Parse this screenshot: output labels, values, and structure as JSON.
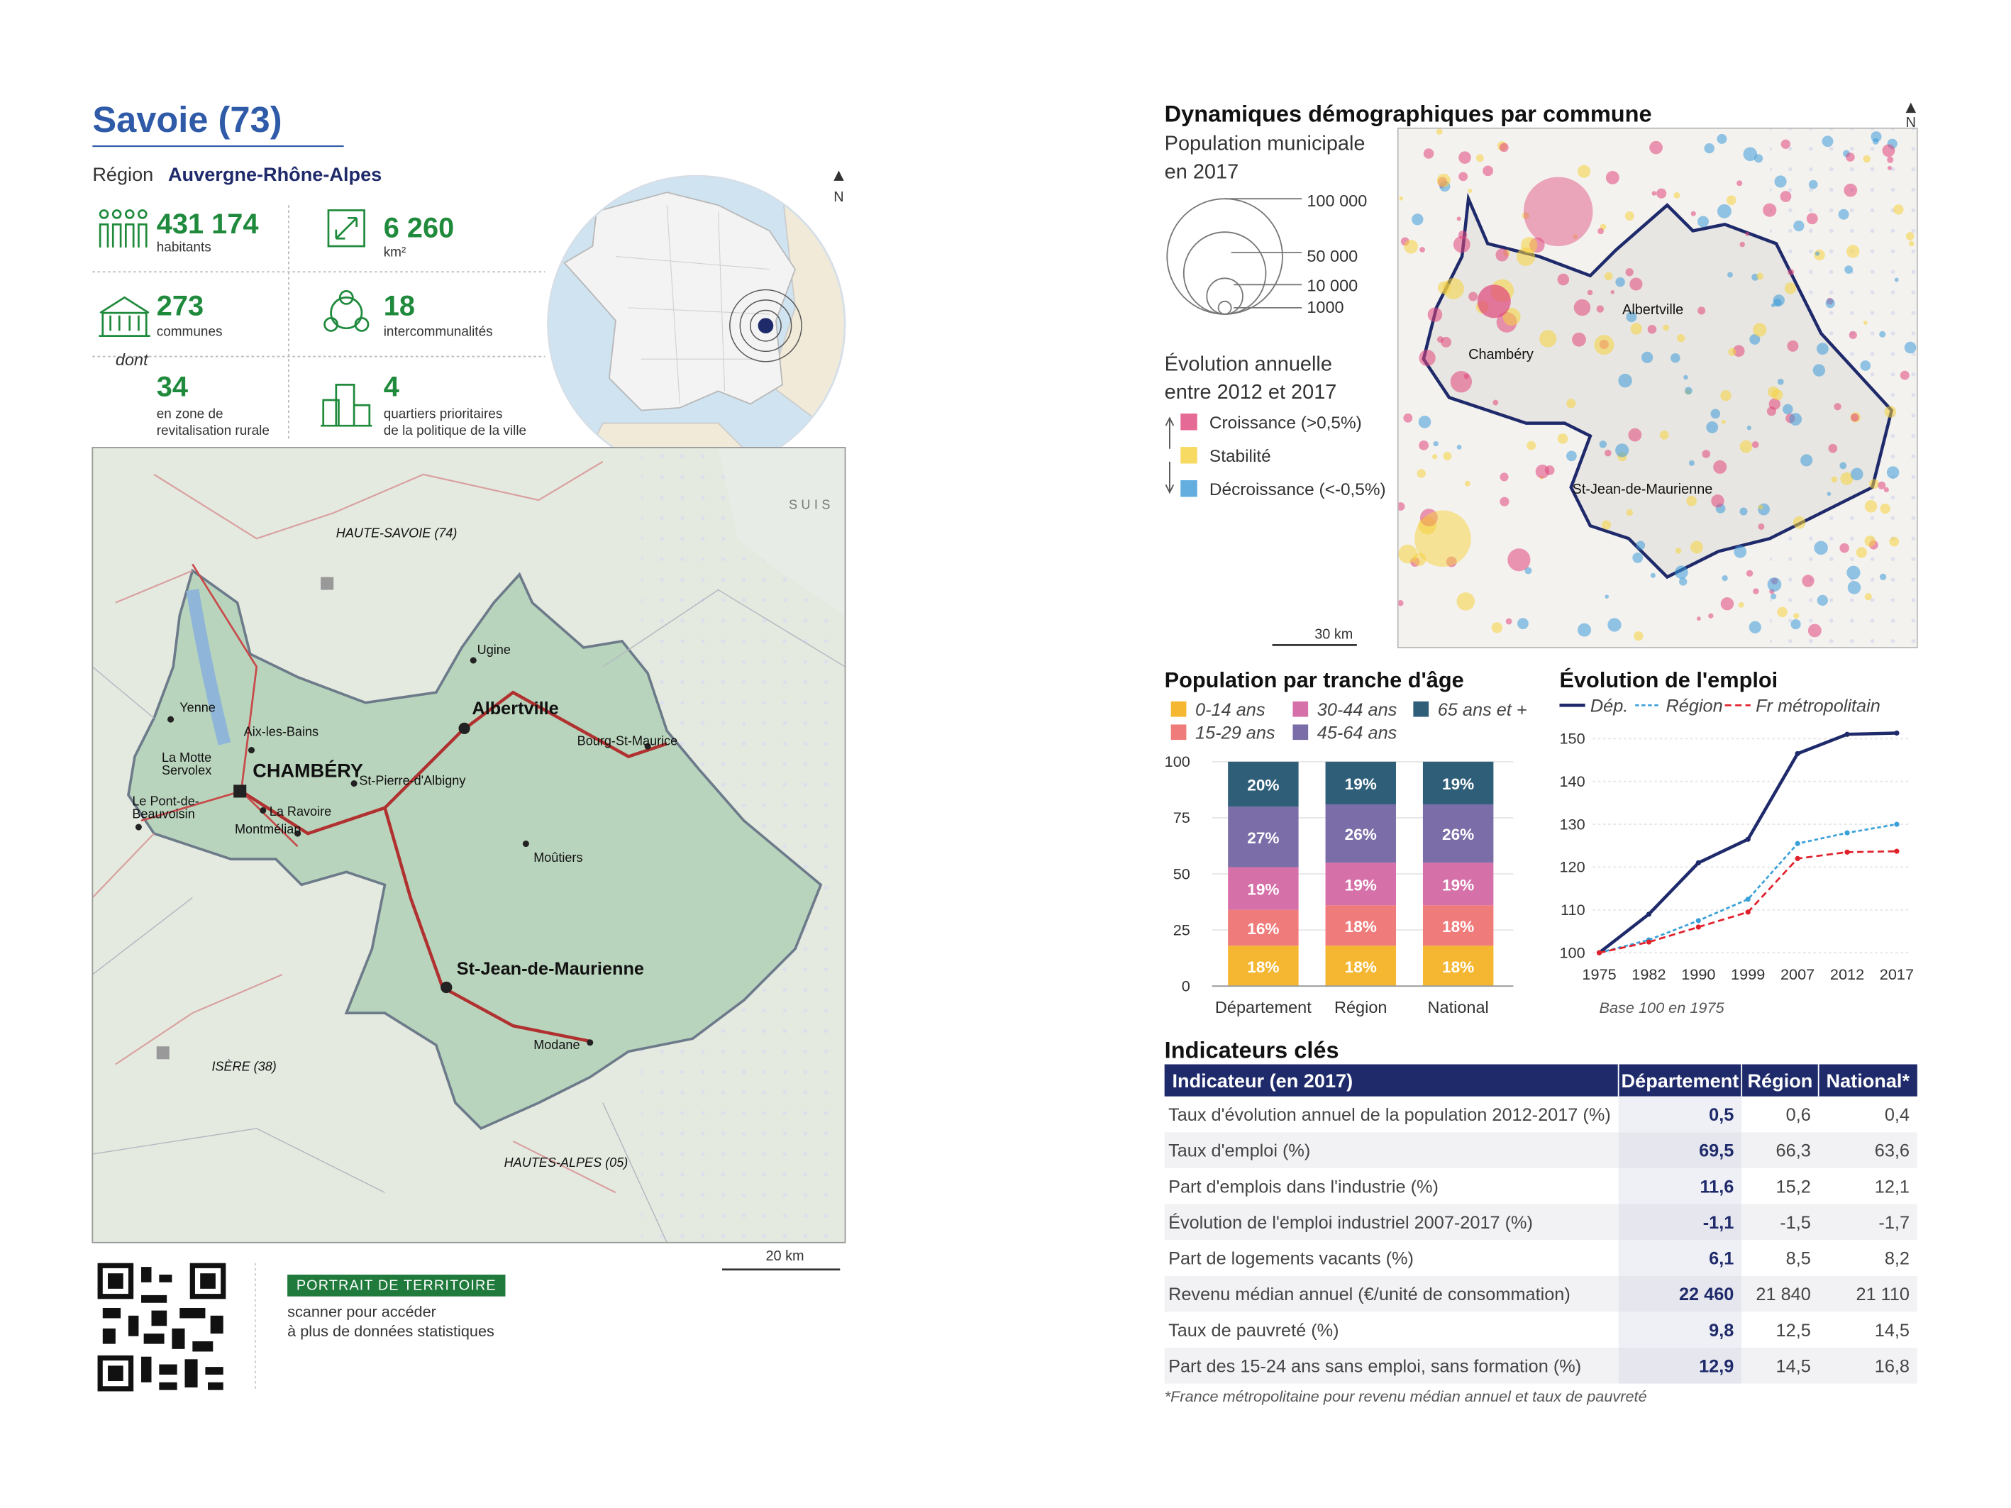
{
  "header": {
    "title": "Savoie (73)",
    "region_label": "Région",
    "region": "Auvergne-Rhône-Alpes"
  },
  "stats": [
    {
      "value": "431 174",
      "label": [
        "habitants"
      ]
    },
    {
      "value": "6 260",
      "label": [
        "km²"
      ]
    },
    {
      "value": "273",
      "label": [
        "communes"
      ]
    },
    {
      "value": "18",
      "label": [
        "intercommunalités"
      ]
    },
    {
      "value": "34",
      "label": [
        "en zone de",
        "revitalisation rurale"
      ]
    },
    {
      "value": "4",
      "label": [
        "quartiers prioritaires",
        "de la politique de la ville"
      ]
    }
  ],
  "stats_dont": "dont",
  "locator": {
    "north": "N"
  },
  "map": {
    "labels": [
      "HAUTE-SAVOIE (74)",
      "SUIS",
      "Ugine",
      "Albertville",
      "Bourg-St-Maurice",
      "Yenne",
      "Aix-les-Bains",
      "La Motte",
      "Servolex",
      "CHAMBÉRY",
      "St-Pierre-d'Albigny",
      "Le Pont-de-",
      "Beauvoisin",
      "La Ravoire",
      "Montmélian",
      "Moûtiers",
      "St-Jean-de-Maurienne",
      "Modane",
      "ISÈRE (38)",
      "HAUTES-ALPES (05)"
    ],
    "scale": "20 km"
  },
  "demography_map": {
    "title": "Dynamiques démographiques par commune",
    "north": "N",
    "size_title": [
      "Population municipale",
      "en 2017"
    ],
    "size_legend": [
      "100 000",
      "50 000",
      "10 000",
      "1000"
    ],
    "change_title": [
      "Évolution annuelle",
      "entre 2012 et 2017"
    ],
    "change_legend": [
      {
        "label": "Croissance (>0,5%)",
        "color": "#e0467c"
      },
      {
        "label": "Stabilité",
        "color": "#f5d23c"
      },
      {
        "label": "Décroissance (<-0,5%)",
        "color": "#3d9ad8"
      }
    ],
    "labels": [
      "Albertville",
      "Chambéry",
      "St-Jean-de-Maurienne"
    ],
    "scale": "30 km"
  },
  "chart_data": [
    {
      "type": "stacked_bar",
      "title": "Population par tranche d'âge",
      "categories": [
        "Département",
        "Région",
        "National"
      ],
      "series": [
        {
          "name": "0-14 ans",
          "color": "#f5b731",
          "values": [
            18,
            18,
            18
          ],
          "value_labels": [
            "18%",
            "18%",
            "18%"
          ]
        },
        {
          "name": "15-29 ans",
          "color": "#ef7b7b",
          "values": [
            16,
            18,
            18
          ],
          "value_labels": [
            "16%",
            "18%",
            "18%"
          ]
        },
        {
          "name": "30-44 ans",
          "color": "#d670a8",
          "values": [
            19,
            19,
            19
          ],
          "value_labels": [
            "19%",
            "19%",
            "19%"
          ]
        },
        {
          "name": "45-64 ans",
          "color": "#7b6ea8",
          "values": [
            27,
            26,
            26
          ],
          "value_labels": [
            "27%",
            "26%",
            "26%"
          ]
        },
        {
          "name": "65 ans et +",
          "color": "#2f5e78",
          "values": [
            20,
            19,
            19
          ],
          "value_labels": [
            "20%",
            "19%",
            "19%"
          ]
        }
      ],
      "ylim": [
        0,
        100
      ],
      "yticks": [
        0,
        25,
        50,
        75,
        100
      ],
      "grid": true
    },
    {
      "type": "line",
      "title": "Évolution de l'emploi",
      "subtitle": "Base 100 en 1975",
      "categories": [
        "1975",
        "1982",
        "1990",
        "1999",
        "2007",
        "2012",
        "2017"
      ],
      "series": [
        {
          "name": "Dép.",
          "color": "#1f2a6b",
          "style": "solid",
          "values": [
            100,
            109,
            121,
            126.5,
            146.5,
            151,
            151.3
          ]
        },
        {
          "name": "Région",
          "color": "#3aa0d8",
          "style": "dotted",
          "values": [
            100,
            103,
            107.5,
            112.5,
            125.5,
            128,
            130
          ]
        },
        {
          "name": "Fr métropolitain",
          "color": "#e0202a",
          "style": "dashed",
          "values": [
            100,
            102.5,
            106,
            109.5,
            122,
            123.5,
            123.7
          ]
        }
      ],
      "ylim": [
        100,
        153
      ],
      "yticks": [
        100,
        110,
        120,
        130,
        140,
        150
      ],
      "grid": true
    }
  ],
  "indicators": {
    "title": "Indicateurs clés",
    "columns": [
      "Indicateur (en 2017)",
      "Département",
      "Région",
      "National*"
    ],
    "rows": [
      [
        "Taux d'évolution annuel de la population 2012-2017 (%)",
        "0,5",
        "0,6",
        "0,4"
      ],
      [
        "Taux d'emploi (%)",
        "69,5",
        "66,3",
        "63,6"
      ],
      [
        "Part d'emplois dans l'industrie (%)",
        "11,6",
        "15,2",
        "12,1"
      ],
      [
        "Évolution de l'emploi industriel 2007-2017 (%)",
        "-1,1",
        "-1,5",
        "-1,7"
      ],
      [
        "Part de logements vacants (%)",
        "6,1",
        "8,5",
        "8,2"
      ],
      [
        "Revenu médian annuel (€/unité de consommation)",
        "22 460",
        "21 840",
        "21 110"
      ],
      [
        "Taux de pauvreté (%)",
        "9,8",
        "12,5",
        "14,5"
      ],
      [
        "Part des 15-24 ans sans emploi, sans formation (%)",
        "12,9",
        "14,5",
        "16,8"
      ]
    ],
    "footnote": "*France métropolitaine pour revenu médian annuel et taux de pauvreté"
  },
  "qr": {
    "badge": "PORTRAIT DE TERRITOIRE",
    "text": [
      "scanner pour accéder",
      "à plus de données statistiques"
    ]
  }
}
